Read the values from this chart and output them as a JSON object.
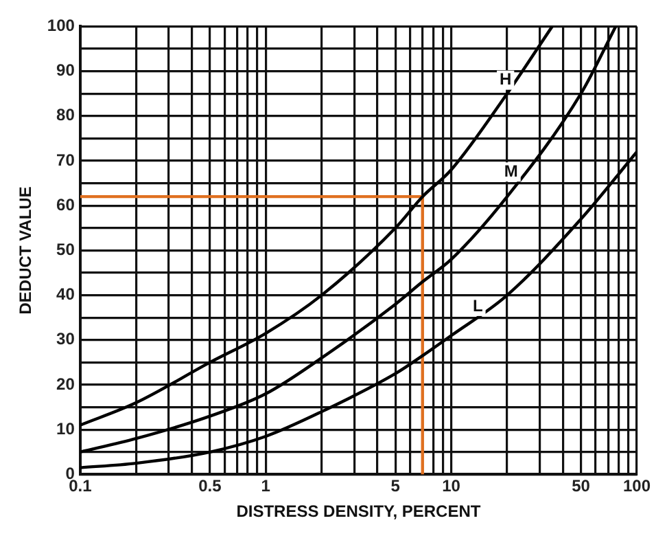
{
  "chart_data": {
    "type": "line",
    "xlabel": "DISTRESS DENSITY, PERCENT",
    "ylabel": "DEDUCT VALUE",
    "log": "x",
    "series": [
      {
        "color": "#000000",
        "x": [
          0.1,
          0.2,
          0.5,
          1,
          2,
          5,
          7,
          10,
          20,
          35
        ],
        "values": [
          11,
          16,
          25,
          31.5,
          40,
          55,
          62,
          68,
          85,
          100
        ]
      },
      {
        "color": "#000000",
        "x": [
          0.1,
          0.2,
          0.5,
          1,
          2,
          5,
          7,
          10,
          20,
          50,
          77
        ],
        "values": [
          5,
          8,
          13,
          18,
          26,
          38,
          43,
          48,
          62,
          85,
          100
        ]
      },
      {
        "color": "#000000",
        "x": [
          0.1,
          0.2,
          0.5,
          1,
          2,
          5,
          7,
          10,
          20,
          50,
          100
        ],
        "values": [
          1.5,
          2.5,
          5,
          8.5,
          14,
          22.5,
          26.5,
          31,
          40,
          57,
          72
        ]
      },
      {
        "color": "#e07020",
        "x": [
          0.1,
          7,
          7
        ],
        "values": [
          62,
          62,
          0
        ]
      }
    ],
    "annotations": [
      {
        "text": "H",
        "x": 19.6,
        "y": 88
      },
      {
        "text": "M",
        "x": 21,
        "y": 67.5
      },
      {
        "text": "L",
        "x": 13.9,
        "y": 37.5
      }
    ],
    "xlim": [
      0.1,
      100
    ],
    "xticks": [
      0.1,
      {
        "value": 0.2,
        "label": null
      },
      {
        "value": 0.3,
        "label": null
      },
      {
        "value": 0.4,
        "label": null
      },
      0.5,
      {
        "value": 0.6,
        "label": null
      },
      {
        "value": 0.7,
        "label": null
      },
      {
        "value": 0.8,
        "label": null
      },
      {
        "value": 0.9,
        "label": null
      },
      1,
      {
        "value": 2,
        "label": null
      },
      {
        "value": 3,
        "label": null
      },
      {
        "value": 4,
        "label": null
      },
      5,
      {
        "value": 6,
        "label": null
      },
      {
        "value": 7,
        "label": null
      },
      {
        "value": 8,
        "label": null
      },
      {
        "value": 9,
        "label": null
      },
      10,
      {
        "value": 20,
        "label": null
      },
      {
        "value": 30,
        "label": null
      },
      {
        "value": 40,
        "label": null
      },
      50,
      {
        "value": 60,
        "label": null
      },
      {
        "value": 70,
        "label": null
      },
      {
        "value": 80,
        "label": null
      },
      {
        "value": 90,
        "label": null
      },
      100
    ],
    "ylim": [
      0,
      100
    ],
    "yticks": [
      0,
      {
        "value": 5,
        "label": null
      },
      10,
      {
        "value": 15,
        "label": null
      },
      20,
      {
        "value": 25,
        "label": null
      },
      30,
      {
        "value": 35,
        "label": null
      },
      40,
      {
        "value": 45,
        "label": null
      },
      50,
      {
        "value": 55,
        "label": null
      },
      60,
      {
        "value": 65,
        "label": null
      },
      70,
      {
        "value": 75,
        "label": null
      },
      80,
      {
        "value": 85,
        "label": null
      },
      90,
      {
        "value": 95,
        "label": null
      },
      100
    ],
    "grid": true,
    "legend": false,
    "marker": "none",
    "line_style": "solid"
  }
}
